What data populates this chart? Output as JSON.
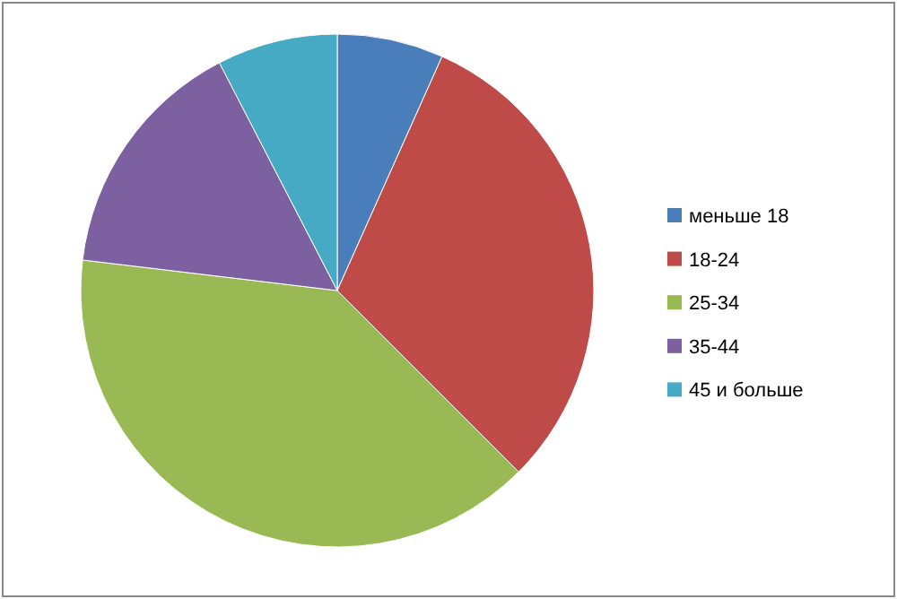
{
  "chart_data": {
    "type": "pie",
    "categories": [
      "меньше 18",
      "18-24",
      "25-34",
      "35-44",
      "45 и больше"
    ],
    "values": [
      6.7,
      30.8,
      39.4,
      15.5,
      7.6
    ],
    "colors": [
      "#4a7ebb",
      "#be4b48",
      "#98b954",
      "#7d60a0",
      "#46aac5"
    ],
    "legend": "right"
  }
}
